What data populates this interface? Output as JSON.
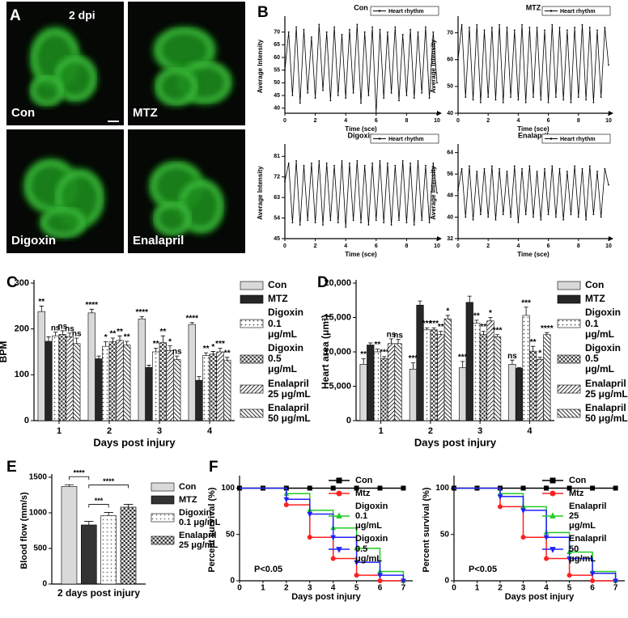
{
  "panel_labels": [
    "A",
    "B",
    "C",
    "D",
    "E",
    "F"
  ],
  "images": {
    "tag": "2 dpi",
    "labels": [
      "Con",
      "MTZ",
      "Digoxin",
      "Enalapril"
    ]
  },
  "chart_data": [
    {
      "type": "line",
      "title": "Con",
      "xlabel": "Time (sce)",
      "ylabel": "Average Intensity",
      "x": [
        0,
        0.25,
        0.5,
        0.75,
        1,
        1.25,
        1.5,
        1.75,
        2,
        2.25,
        2.5,
        2.75,
        3,
        3.25,
        3.5,
        3.75,
        4,
        4.25,
        4.5,
        4.75,
        5,
        5.25,
        5.5,
        5.75,
        6,
        6.25,
        6.5,
        6.75,
        7,
        7.25,
        7.5,
        7.75,
        8,
        8.25,
        8.5,
        8.75,
        9,
        9.25,
        9.5,
        9.75,
        10
      ],
      "series": [
        {
          "name": "Heart rhythm",
          "color": "#000000",
          "values": [
            55,
            70,
            45,
            72,
            42,
            71,
            46,
            68,
            44,
            73,
            47,
            70,
            43,
            72,
            45,
            69,
            44,
            71,
            46,
            73,
            42,
            70,
            45,
            72,
            38,
            71,
            44,
            70,
            46,
            72,
            43,
            69,
            45,
            71,
            44,
            70,
            46,
            72,
            44,
            70,
            50
          ]
        }
      ],
      "xlim": [
        0,
        10
      ],
      "xticks": [
        0,
        2,
        4,
        6,
        8,
        10
      ],
      "ylim": [
        38,
        75
      ],
      "yticks": [
        40,
        45,
        50,
        55,
        60,
        65,
        70
      ]
    },
    {
      "type": "line",
      "title": "MTZ",
      "xlabel": "Time (sce)",
      "ylabel": "Average Intensity",
      "x": [
        0,
        0.25,
        0.5,
        0.75,
        1,
        1.25,
        1.5,
        1.75,
        2,
        2.25,
        2.5,
        2.75,
        3,
        3.25,
        3.5,
        3.75,
        4,
        4.25,
        4.5,
        4.75,
        5,
        5.25,
        5.5,
        5.75,
        6,
        6.25,
        6.5,
        6.75,
        7,
        7.25,
        7.5,
        7.75,
        8,
        8.25,
        8.5,
        8.75,
        9,
        9.25,
        9.5,
        9.75,
        10
      ],
      "series": [
        {
          "name": "Heart rhythm",
          "color": "#000000",
          "values": [
            60,
            73,
            46,
            72,
            45,
            73,
            44,
            71,
            46,
            72,
            45,
            73,
            44,
            72,
            46,
            71,
            45,
            73,
            44,
            72,
            46,
            72,
            45,
            71,
            44,
            73,
            46,
            72,
            45,
            71,
            44,
            72,
            46,
            73,
            45,
            72,
            44,
            71,
            46,
            72,
            58
          ]
        }
      ],
      "xlim": [
        0,
        10
      ],
      "xticks": [
        0,
        2,
        4,
        6,
        8,
        10
      ],
      "ylim": [
        40,
        75
      ],
      "yticks": [
        40,
        50,
        60,
        70
      ]
    },
    {
      "type": "line",
      "title": "Digoxin",
      "xlabel": "Time (sce)",
      "ylabel": "Average Intensity",
      "x": [
        0,
        0.25,
        0.5,
        0.75,
        1,
        1.25,
        1.5,
        1.75,
        2,
        2.25,
        2.5,
        2.75,
        3,
        3.25,
        3.5,
        3.75,
        4,
        4.25,
        4.5,
        4.75,
        5,
        5.25,
        5.5,
        5.75,
        6,
        6.25,
        6.5,
        6.75,
        7,
        7.25,
        7.5,
        7.75,
        8,
        8.25,
        8.5,
        8.75,
        9,
        9.25,
        9.5,
        9.75,
        10
      ],
      "series": [
        {
          "name": "Heart rhythm",
          "color": "#000000",
          "values": [
            70,
            78,
            52,
            79,
            51,
            77,
            53,
            78,
            52,
            79,
            51,
            78,
            53,
            77,
            52,
            79,
            50,
            78,
            53,
            79,
            52,
            77,
            51,
            78,
            53,
            79,
            52,
            78,
            51,
            77,
            53,
            79,
            52,
            78,
            51,
            79,
            53,
            77,
            52,
            78,
            65
          ]
        }
      ],
      "xlim": [
        0,
        10
      ],
      "xticks": [
        0,
        2,
        4,
        6,
        8,
        10
      ],
      "ylim": [
        45,
        85
      ],
      "yticks": [
        45,
        54,
        63,
        72,
        81
      ]
    },
    {
      "type": "line",
      "title": "Enalapril",
      "xlabel": "Time (sce)",
      "ylabel": "Average Intensity",
      "x": [
        0,
        0.25,
        0.5,
        0.75,
        1,
        1.25,
        1.5,
        1.75,
        2,
        2.25,
        2.5,
        2.75,
        3,
        3.25,
        3.5,
        3.75,
        4,
        4.25,
        4.5,
        4.75,
        5,
        5.25,
        5.5,
        5.75,
        6,
        6.25,
        6.5,
        6.75,
        7,
        7.25,
        7.5,
        7.75,
        8,
        8.25,
        8.5,
        8.75,
        9,
        9.25,
        9.5,
        9.75,
        10
      ],
      "series": [
        {
          "name": "Heart rhythm",
          "color": "#000000",
          "values": [
            50,
            58,
            40,
            59,
            39,
            57,
            41,
            58,
            40,
            59,
            39,
            58,
            41,
            57,
            40,
            59,
            38,
            58,
            41,
            59,
            40,
            57,
            39,
            58,
            41,
            59,
            40,
            58,
            39,
            57,
            41,
            59,
            40,
            58,
            39,
            59,
            41,
            57,
            40,
            58,
            52
          ]
        }
      ],
      "xlim": [
        0,
        10
      ],
      "xticks": [
        0,
        2,
        4,
        6,
        8,
        10
      ],
      "ylim": [
        32,
        66
      ],
      "yticks": [
        32,
        40,
        48,
        56,
        64
      ]
    },
    {
      "type": "bar",
      "xlabel": "Days post injury",
      "ylabel": "BPM",
      "categories": [
        "1",
        "2",
        "3",
        "4"
      ],
      "ylim": [
        0,
        300
      ],
      "yticks": [
        0,
        100,
        200,
        300
      ],
      "series": [
        {
          "name": "Con",
          "color": "#d9d9d9",
          "pattern": "solid",
          "values": [
            238,
            235,
            222,
            210
          ],
          "errors": [
            12,
            8,
            5,
            4
          ],
          "labels": [
            "**",
            "****",
            "****",
            "****"
          ]
        },
        {
          "name": "MTZ",
          "color": "#262626",
          "pattern": "solid",
          "values": [
            173,
            135,
            116,
            88
          ],
          "errors": [
            10,
            6,
            5,
            8
          ],
          "labels": [
            null,
            null,
            null,
            null
          ]
        },
        {
          "name": "Digoxin 0.1 μg/mL",
          "color": "#555555",
          "pattern": "dots",
          "values": [
            185,
            162,
            150,
            142
          ],
          "errors": [
            8,
            10,
            8,
            6
          ],
          "labels": [
            "ns",
            "*",
            "**",
            "**"
          ]
        },
        {
          "name": "Digoxin 0.5 μg/mL",
          "color": "#444444",
          "pattern": "checks",
          "values": [
            188,
            172,
            170,
            145
          ],
          "errors": [
            8,
            8,
            15,
            6
          ],
          "labels": [
            "ns",
            "**",
            "**",
            "*"
          ]
        },
        {
          "name": "Enalapril 25 μg/mL",
          "color": "#333333",
          "pattern": "hatch",
          "values": [
            183,
            175,
            153,
            150
          ],
          "errors": [
            8,
            10,
            10,
            8
          ],
          "labels": [
            "ns",
            "**",
            "*",
            "***"
          ]
        },
        {
          "name": "Enalapril 50 μg/mL",
          "color": "#333333",
          "pattern": "backhatch",
          "values": [
            168,
            165,
            133,
            132
          ],
          "errors": [
            12,
            8,
            8,
            6
          ],
          "labels": [
            "ns",
            "**",
            "ns",
            "**"
          ]
        }
      ]
    },
    {
      "type": "bar",
      "xlabel": "Days post injury",
      "ylabel": "Heart area (μm²)",
      "categories": [
        "1",
        "2",
        "3",
        "4"
      ],
      "ylim": [
        0,
        20000
      ],
      "yticks": [
        0,
        {
          "value": 5000,
          "label": "5,000"
        },
        {
          "value": 10000,
          "label": "10,000"
        },
        {
          "value": 15000,
          "label": "15,000"
        },
        {
          "value": 20000,
          "label": "20,000"
        }
      ],
      "series": [
        {
          "name": "Con",
          "color": "#d9d9d9",
          "pattern": "solid",
          "values": [
            8200,
            7500,
            7700,
            8200
          ],
          "errors": [
            800,
            900,
            900,
            600
          ],
          "labels": [
            "**",
            "***",
            "***",
            "ns"
          ]
        },
        {
          "name": "MTZ",
          "color": "#262626",
          "pattern": "solid",
          "values": [
            11000,
            16800,
            17200,
            7600
          ],
          "errors": [
            300,
            600,
            900,
            100
          ],
          "labels": [
            null,
            null,
            null,
            null
          ]
        },
        {
          "name": "Digoxin 0.1 μg/mL",
          "color": "#555555",
          "pattern": "dots",
          "values": [
            10000,
            13200,
            14200,
            15300
          ],
          "errors": [
            400,
            300,
            400,
            1200
          ],
          "labels": [
            "**",
            "***",
            "**",
            "***"
          ]
        },
        {
          "name": "Digoxin 0.5 μg/mL",
          "color": "#444444",
          "pattern": "checks",
          "values": [
            9000,
            13200,
            12500,
            10100
          ],
          "errors": [
            300,
            300,
            500,
            700
          ],
          "labels": [
            "***",
            "***",
            "**",
            "**"
          ]
        },
        {
          "name": "Enalapril 25 μg/mL",
          "color": "#333333",
          "pattern": "hatch",
          "values": [
            11200,
            12500,
            14500,
            8900
          ],
          "errors": [
            700,
            500,
            500,
            300
          ],
          "labels": [
            "ns",
            "**",
            "*",
            "*"
          ]
        },
        {
          "name": "Enalapril 50 μg/mL",
          "color": "#333333",
          "pattern": "backhatch",
          "values": [
            11200,
            14800,
            12200,
            12500
          ],
          "errors": [
            600,
            500,
            300,
            300
          ],
          "labels": [
            "ns",
            "*",
            "***",
            "****"
          ]
        }
      ]
    },
    {
      "type": "bar",
      "xlabel": "2 days post injury",
      "ylabel": "Blood flow (mm/s)",
      "categories": [
        null
      ],
      "ylim": [
        0,
        1500
      ],
      "yticks": [
        0,
        500,
        1000,
        1500
      ],
      "series": [
        {
          "name": "Con",
          "color": "#d9d9d9",
          "pattern": "solid",
          "values": [
            1370
          ],
          "errors": [
            25
          ]
        },
        {
          "name": "MTZ",
          "color": "#333333",
          "pattern": "solid",
          "values": [
            830
          ],
          "errors": [
            50
          ]
        },
        {
          "name": "Digoxin 0.1 μg/mL",
          "color": "#777777",
          "pattern": "dots",
          "values": [
            960
          ],
          "errors": [
            45
          ]
        },
        {
          "name": "Enalapril 25 μg/mL",
          "color": "#333333",
          "pattern": "checks",
          "values": [
            1080
          ],
          "errors": [
            40
          ]
        }
      ],
      "brackets": [
        {
          "pair": [
            "Con",
            "MTZ"
          ],
          "label": "****"
        },
        {
          "pair": [
            "MTZ",
            "Digoxin 0.1 μg/mL"
          ],
          "label": "***"
        },
        {
          "pair": [
            "MTZ",
            "Enalapril 25 μg/mL"
          ],
          "label": "****"
        }
      ]
    },
    {
      "type": "step",
      "xlabel": "Days post injury",
      "ylabel": "Percent survival (%)",
      "annotation": "P<0.05",
      "x": [
        0,
        1,
        2,
        3,
        4,
        5,
        6,
        7
      ],
      "xlim": [
        0,
        7.4
      ],
      "xticks": [
        0,
        1,
        2,
        3,
        4,
        5,
        6,
        7
      ],
      "ylim": [
        0,
        110
      ],
      "yticks": [
        0,
        50,
        100
      ],
      "series": [
        {
          "name": "Con",
          "color": "#000000",
          "marker": "square",
          "values": [
            100,
            100,
            100,
            100,
            100,
            100,
            100,
            100
          ]
        },
        {
          "name": "Mtz",
          "color": "#ff2020",
          "marker": "circle",
          "values": [
            100,
            100,
            82,
            47,
            24,
            6,
            0,
            0
          ]
        },
        {
          "name": "Digoxin 0.1 μg/mL",
          "color": "#22cc22",
          "marker": "triangle",
          "values": [
            100,
            100,
            94,
            76,
            57,
            35,
            10,
            0
          ]
        },
        {
          "name": "Digoxin 0.5 μg/mL",
          "color": "#2020ff",
          "marker": "down-triangle",
          "values": [
            100,
            100,
            88,
            72,
            47,
            20,
            6,
            0
          ]
        }
      ]
    },
    {
      "type": "step",
      "xlabel": "Days post injury",
      "ylabel": "Percent survival (%)",
      "annotation": "P<0.05",
      "x": [
        0,
        1,
        2,
        3,
        4,
        5,
        6,
        7
      ],
      "xlim": [
        0,
        7.4
      ],
      "xticks": [
        0,
        1,
        2,
        3,
        4,
        5,
        6,
        7
      ],
      "ylim": [
        0,
        110
      ],
      "yticks": [
        0,
        50,
        100
      ],
      "series": [
        {
          "name": "Con",
          "color": "#000000",
          "marker": "square",
          "values": [
            100,
            100,
            100,
            100,
            100,
            100,
            100,
            100
          ]
        },
        {
          "name": "Mtz",
          "color": "#ff2020",
          "marker": "circle",
          "values": [
            100,
            100,
            80,
            47,
            24,
            6,
            0,
            0
          ]
        },
        {
          "name": "Enalapril 25 μg/mL",
          "color": "#22cc22",
          "marker": "triangle",
          "values": [
            100,
            100,
            94,
            80,
            52,
            31,
            10,
            0
          ]
        },
        {
          "name": "Enalapril 50 μg/mL",
          "color": "#2020ff",
          "marker": "down-triangle",
          "values": [
            100,
            100,
            91,
            76,
            47,
            24,
            8,
            0
          ]
        }
      ]
    }
  ]
}
